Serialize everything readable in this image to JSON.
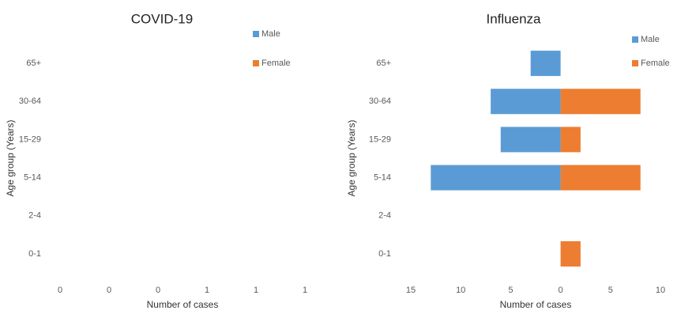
{
  "chart_data": [
    {
      "type": "bar",
      "orientation": "horizontal",
      "title": "COVID-19",
      "ylabel": "Age group (Years)",
      "xlabel": "Number of cases",
      "categories": [
        "0-1",
        "2-4",
        "5-14",
        "15-29",
        "30-64",
        "65+"
      ],
      "series": [
        {
          "name": "Male",
          "color": "#5b9bd5",
          "values": [
            0,
            0,
            0,
            0,
            0,
            0
          ]
        },
        {
          "name": "Female",
          "color": "#ed7d31",
          "values": [
            0,
            0,
            0,
            0,
            0,
            0
          ]
        }
      ],
      "xlim": [
        0,
        1
      ],
      "xticks": [
        {
          "value": 0,
          "label": "0"
        },
        {
          "value": 0.2,
          "label": "0"
        },
        {
          "value": 0.4,
          "label": "0"
        },
        {
          "value": 0.6,
          "label": "1"
        },
        {
          "value": 0.8,
          "label": "1"
        },
        {
          "value": 1,
          "label": "1"
        }
      ],
      "grid": false,
      "legend": "upper right"
    },
    {
      "type": "bar",
      "orientation": "horizontal",
      "title": "Influenza",
      "ylabel": "Age group (Years)",
      "xlabel": "Number of cases",
      "categories": [
        "0-1",
        "2-4",
        "5-14",
        "15-29",
        "30-64",
        "65+"
      ],
      "series": [
        {
          "name": "Male",
          "color": "#5b9bd5",
          "values": [
            0,
            0,
            -13,
            -6,
            -7,
            -3
          ]
        },
        {
          "name": "Female",
          "color": "#ed7d31",
          "values": [
            2,
            0,
            8,
            2,
            8,
            0
          ]
        }
      ],
      "xlim": [
        -15,
        10
      ],
      "xticks": [
        {
          "value": -15,
          "label": "15"
        },
        {
          "value": -10,
          "label": "10"
        },
        {
          "value": -5,
          "label": "5"
        },
        0,
        5,
        10
      ],
      "grid": false,
      "legend": "upper right"
    }
  ]
}
